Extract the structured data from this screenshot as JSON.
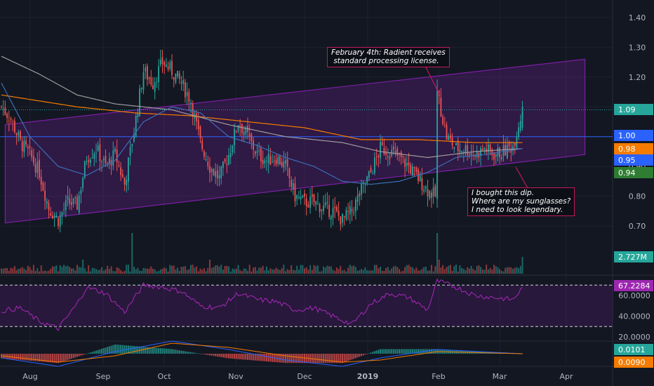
{
  "chart_data": {
    "type": "candlestick",
    "timeframe": "daily",
    "x_axis": {
      "tick_labels": [
        "Aug",
        "Sep",
        "Oct",
        "Nov",
        "Dec",
        "2019",
        "Feb",
        "Mar",
        "Apr"
      ]
    },
    "price_panel": {
      "y_axis": {
        "tick_labels": [
          "0.70",
          "0.80",
          "0.90",
          "1.00",
          "1.10",
          "1.20",
          "1.30",
          "1.40"
        ],
        "ylim": [
          0.65,
          1.45
        ]
      },
      "price_tags": [
        {
          "value": "1.09",
          "color": "#26a69a",
          "text_color": "#ffffff"
        },
        {
          "value": "1.00",
          "color": "#2962ff",
          "text_color": "#ffffff"
        },
        {
          "value": "0.98",
          "color": "#f57c00",
          "text_color": "#ffffff"
        },
        {
          "value": "0.95",
          "color": "#2962ff",
          "text_color": "#ffffff"
        },
        {
          "value": "0.94",
          "color": "#2e7d32",
          "text_color": "#ffffff"
        }
      ],
      "horizontal_lines": [
        {
          "value": 1.0,
          "color": "#2962ff",
          "style": "solid"
        },
        {
          "value": 1.09,
          "color": "#26a69a",
          "style": "dotted"
        }
      ],
      "close_path": [
        [
          0,
          1.1
        ],
        [
          5,
          1.06
        ],
        [
          10,
          0.98
        ],
        [
          15,
          0.94
        ],
        [
          20,
          0.88
        ],
        [
          25,
          0.76
        ],
        [
          30,
          0.72
        ],
        [
          35,
          0.78
        ],
        [
          40,
          0.77
        ],
        [
          45,
          0.93
        ],
        [
          50,
          0.96
        ],
        [
          55,
          0.9
        ],
        [
          60,
          0.94
        ],
        [
          65,
          0.84
        ],
        [
          70,
          1.02
        ],
        [
          75,
          1.22
        ],
        [
          80,
          1.18
        ],
        [
          85,
          1.25
        ],
        [
          90,
          1.22
        ],
        [
          95,
          1.18
        ],
        [
          100,
          1.12
        ],
        [
          105,
          0.98
        ],
        [
          110,
          0.9
        ],
        [
          115,
          0.86
        ],
        [
          120,
          0.94
        ],
        [
          125,
          1.05
        ],
        [
          130,
          1.0
        ],
        [
          135,
          0.94
        ],
        [
          140,
          0.92
        ],
        [
          145,
          0.93
        ],
        [
          150,
          0.9
        ],
        [
          155,
          0.8
        ],
        [
          160,
          0.78
        ],
        [
          165,
          0.78
        ],
        [
          170,
          0.76
        ],
        [
          175,
          0.75
        ],
        [
          180,
          0.72
        ],
        [
          185,
          0.75
        ],
        [
          190,
          0.82
        ],
        [
          195,
          0.88
        ],
        [
          200,
          0.96
        ],
        [
          205,
          0.95
        ],
        [
          210,
          0.93
        ],
        [
          215,
          0.9
        ],
        [
          220,
          0.86
        ],
        [
          225,
          0.82
        ],
        [
          229,
          0.8
        ],
        [
          230,
          1.15
        ],
        [
          235,
          1.0
        ],
        [
          240,
          0.96
        ],
        [
          245,
          0.96
        ],
        [
          250,
          0.94
        ],
        [
          255,
          0.96
        ],
        [
          260,
          0.94
        ],
        [
          265,
          0.95
        ],
        [
          270,
          0.97
        ],
        [
          275,
          1.09
        ]
      ],
      "moving_averages": [
        {
          "color": "#f57c00",
          "path": [
            [
              0,
              1.14
            ],
            [
              40,
              1.1
            ],
            [
              70,
              1.08
            ],
            [
              100,
              1.07
            ],
            [
              130,
              1.05
            ],
            [
              160,
              1.03
            ],
            [
              190,
              0.99
            ],
            [
              220,
              0.99
            ],
            [
              250,
              0.98
            ],
            [
              275,
              0.98
            ]
          ]
        },
        {
          "color": "#9e9e9e",
          "path": [
            [
              0,
              1.27
            ],
            [
              20,
              1.21
            ],
            [
              40,
              1.14
            ],
            [
              60,
              1.11
            ],
            [
              90,
              1.09
            ],
            [
              120,
              1.04
            ],
            [
              150,
              1.0
            ],
            [
              180,
              0.98
            ],
            [
              200,
              0.95
            ],
            [
              225,
              0.93
            ],
            [
              250,
              0.95
            ],
            [
              275,
              0.96
            ]
          ]
        },
        {
          "color": "#3b6fb6",
          "path": [
            [
              0,
              1.18
            ],
            [
              15,
              1.0
            ],
            [
              30,
              0.9
            ],
            [
              45,
              0.87
            ],
            [
              60,
              0.92
            ],
            [
              75,
              1.05
            ],
            [
              90,
              1.1
            ],
            [
              105,
              1.08
            ],
            [
              120,
              1.0
            ],
            [
              135,
              0.97
            ],
            [
              150,
              0.93
            ],
            [
              165,
              0.9
            ],
            [
              180,
              0.85
            ],
            [
              195,
              0.84
            ],
            [
              210,
              0.85
            ],
            [
              225,
              0.88
            ],
            [
              240,
              0.93
            ],
            [
              255,
              0.94
            ],
            [
              275,
              0.96
            ]
          ]
        }
      ],
      "channel": {
        "color": "#7b1fa2",
        "upper": [
          [
            2,
            1.04
          ],
          [
            308,
            1.26
          ]
        ],
        "lower": [
          [
            2,
            0.71
          ],
          [
            308,
            0.94
          ]
        ]
      }
    },
    "volume_panel": {
      "last_value": "2.727M",
      "tag_color": "#26a69a"
    },
    "rsi_panel": {
      "y_axis": {
        "tick_labels": [
          "20.0000",
          "40.0000",
          "60.0000"
        ],
        "ylim": [
          10,
          85
        ]
      },
      "bands": [
        70,
        30
      ],
      "last_value": "67.2284",
      "tag_color": "#9c27b0",
      "line_color": "#9c27b0",
      "path": [
        [
          0,
          45
        ],
        [
          10,
          48
        ],
        [
          20,
          35
        ],
        [
          30,
          28
        ],
        [
          40,
          52
        ],
        [
          45,
          68
        ],
        [
          55,
          62
        ],
        [
          65,
          44
        ],
        [
          75,
          70
        ],
        [
          85,
          68
        ],
        [
          95,
          64
        ],
        [
          105,
          50
        ],
        [
          115,
          48
        ],
        [
          125,
          62
        ],
        [
          135,
          56
        ],
        [
          145,
          54
        ],
        [
          155,
          46
        ],
        [
          165,
          48
        ],
        [
          175,
          40
        ],
        [
          185,
          32
        ],
        [
          195,
          52
        ],
        [
          205,
          62
        ],
        [
          215,
          58
        ],
        [
          225,
          46
        ],
        [
          230,
          74
        ],
        [
          240,
          68
        ],
        [
          250,
          60
        ],
        [
          260,
          58
        ],
        [
          270,
          56
        ],
        [
          275,
          67
        ]
      ]
    },
    "macd_panel": {
      "values": [
        {
          "value": "0.0101",
          "color": "#26a69a"
        },
        {
          "value": "0.0090",
          "color": "#f57c00"
        }
      ],
      "lines": [
        {
          "color": "#2962ff",
          "path": [
            [
              0,
              -0.02
            ],
            [
              30,
              -0.06
            ],
            [
              60,
              0.01
            ],
            [
              90,
              0.06
            ],
            [
              120,
              0.02
            ],
            [
              150,
              -0.03
            ],
            [
              180,
              -0.06
            ],
            [
              200,
              -0.02
            ],
            [
              230,
              0.02
            ],
            [
              275,
              0.0
            ]
          ]
        },
        {
          "color": "#f57c00",
          "path": [
            [
              0,
              -0.01
            ],
            [
              30,
              -0.04
            ],
            [
              60,
              -0.01
            ],
            [
              90,
              0.05
            ],
            [
              120,
              0.03
            ],
            [
              150,
              -0.01
            ],
            [
              180,
              -0.04
            ],
            [
              200,
              -0.03
            ],
            [
              230,
              0.01
            ],
            [
              275,
              0.0
            ]
          ]
        }
      ]
    },
    "annotations": [
      {
        "text": "February 4th: Radient receives\n standard processing license."
      },
      {
        "text": "I bought this dip.\nWhere are my sunglasses?\nI need to look legendary."
      }
    ]
  }
}
